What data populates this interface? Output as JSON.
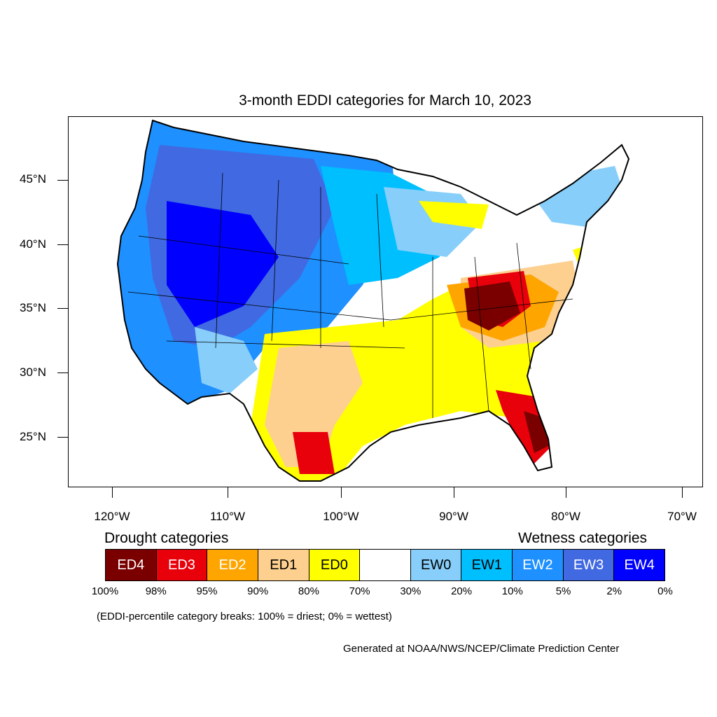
{
  "title": "3-month EDDI categories for March 10, 2023",
  "lat_labels": [
    "45°N",
    "40°N",
    "35°N",
    "30°N",
    "25°N"
  ],
  "lon_labels": [
    "120°W",
    "110°W",
    "100°W",
    "90°W",
    "80°W",
    "70°W"
  ],
  "legend": {
    "drought_heading": "Drought categories",
    "wetness_heading": "Wetness categories",
    "categories": [
      {
        "label": "ED4",
        "color": "#7a0000",
        "text_color": "#ffffff"
      },
      {
        "label": "ED3",
        "color": "#e8000b",
        "text_color": "#ffffff"
      },
      {
        "label": "ED2",
        "color": "#ffa500",
        "text_color": "#ffffff"
      },
      {
        "label": "ED1",
        "color": "#fdd08f",
        "text_color": "#000000"
      },
      {
        "label": "ED0",
        "color": "#ffff00",
        "text_color": "#000000"
      },
      {
        "label": "",
        "color": "#ffffff",
        "text_color": "#000000"
      },
      {
        "label": "EW0",
        "color": "#87cefa",
        "text_color": "#000000"
      },
      {
        "label": "EW1",
        "color": "#00bfff",
        "text_color": "#000000"
      },
      {
        "label": "EW2",
        "color": "#1e90ff",
        "text_color": "#ffffff"
      },
      {
        "label": "EW3",
        "color": "#4169e1",
        "text_color": "#ffffff"
      },
      {
        "label": "EW4",
        "color": "#0000ff",
        "text_color": "#ffffff"
      }
    ],
    "breaks": [
      "100%",
      "98%",
      "95%",
      "90%",
      "80%",
      "70%",
      "30%",
      "20%",
      "10%",
      "5%",
      "2%",
      "0%"
    ]
  },
  "note": "(EDDI-percentile category breaks: 100% = driest; 0% = wettest)",
  "credit": "Generated at NOAA/NWS/NCEP/Climate Prediction Center"
}
